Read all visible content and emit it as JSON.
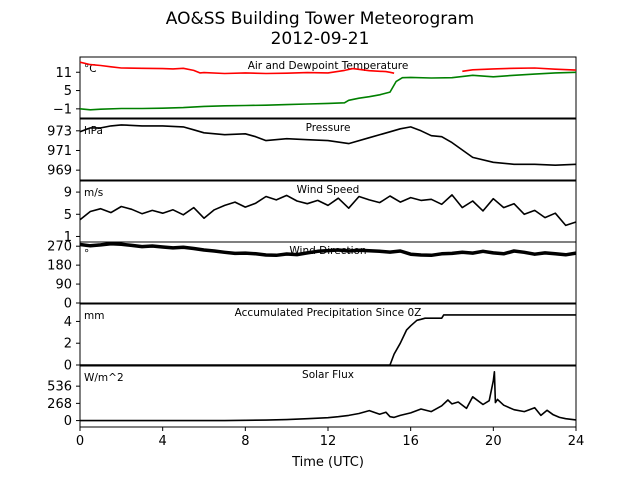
{
  "figure": {
    "title": "AO&SS Building Tower Meteorogram",
    "subtitle": "2012-09-21",
    "xlabel": "Time (UTC)",
    "x_ticks": [
      "0",
      "4",
      "8",
      "12",
      "16",
      "20",
      "24"
    ]
  },
  "chart_data": [
    {
      "type": "line",
      "title": "Air and Dewpoint Temperature",
      "unit": "°C",
      "ylim": [
        -4,
        16
      ],
      "y_ticks": [
        -1,
        5,
        11
      ],
      "series": [
        {
          "color": "#ff0000",
          "x": [
            0,
            0.5,
            1,
            1.5,
            2,
            3,
            4,
            4.5,
            5,
            5.5,
            5.8,
            6,
            7,
            8,
            9,
            10,
            11,
            12,
            12.8,
            13.2,
            14,
            14.8,
            15,
            15.2
          ],
          "y": [
            14.3,
            13.5,
            13.2,
            12.8,
            12.4,
            12.3,
            12.2,
            12.1,
            12.3,
            11.6,
            10.8,
            10.9,
            10.6,
            10.8,
            10.6,
            10.7,
            10.9,
            10.8,
            11.6,
            12.2,
            11.5,
            11.2,
            11.0,
            10.7
          ]
        },
        {
          "color": "#008000",
          "x": [
            0,
            0.5,
            1,
            2,
            3,
            4,
            5,
            6,
            7,
            8,
            9,
            10,
            11,
            12,
            12.8,
            13,
            13.5,
            14,
            14.5,
            15,
            15.3,
            15.6,
            16,
            17,
            18,
            19,
            20,
            21,
            22,
            23,
            24
          ],
          "y": [
            -1.0,
            -1.3,
            -1.1,
            -0.9,
            -0.9,
            -0.8,
            -0.6,
            -0.2,
            0.0,
            0.1,
            0.2,
            0.4,
            0.6,
            0.8,
            1.0,
            1.8,
            2.5,
            3.0,
            3.6,
            4.5,
            8.0,
            9.2,
            9.3,
            9.1,
            9.2,
            10.0,
            9.5,
            10.0,
            10.4,
            10.8,
            11.0
          ]
        },
        {
          "color": "#ff0000",
          "x": [
            18.5,
            19,
            20,
            21,
            22,
            23,
            24
          ],
          "y": [
            11.3,
            11.8,
            12.1,
            12.3,
            12.4,
            12.0,
            11.7
          ]
        }
      ]
    },
    {
      "type": "line",
      "title": "Pressure",
      "unit": "hPa",
      "ylim": [
        968,
        974.2
      ],
      "y_ticks": [
        969,
        971,
        973
      ],
      "series": [
        {
          "color": "#000000",
          "x": [
            0,
            0.5,
            1,
            1.5,
            2,
            3,
            4,
            5,
            5.5,
            6,
            7,
            8,
            8.5,
            9,
            10,
            11,
            12,
            13,
            14,
            15,
            15.5,
            16,
            16.5,
            17,
            17.5,
            18,
            19,
            20,
            21,
            22,
            23,
            24
          ],
          "y": [
            972.9,
            973.3,
            973.3,
            973.5,
            973.6,
            973.5,
            973.5,
            973.4,
            973.1,
            972.8,
            972.6,
            972.7,
            972.4,
            972.0,
            972.2,
            972.1,
            972.0,
            971.7,
            972.3,
            972.9,
            973.2,
            973.4,
            973.0,
            972.5,
            972.4,
            971.8,
            970.3,
            969.8,
            969.6,
            969.6,
            969.5,
            969.6
          ]
        }
      ]
    },
    {
      "type": "line",
      "title": "Wind Speed",
      "unit": "m/s",
      "ylim": [
        0,
        11
      ],
      "y_ticks": [
        1,
        5,
        9
      ],
      "series": [
        {
          "color": "#000000",
          "x": [
            0,
            0.5,
            1,
            1.5,
            2,
            2.5,
            3,
            3.5,
            4,
            4.5,
            5,
            5.5,
            6,
            6.5,
            7,
            7.5,
            8,
            8.5,
            9,
            9.5,
            10,
            10.5,
            11,
            11.5,
            12,
            12.5,
            13,
            13.5,
            14,
            14.5,
            15,
            15.5,
            16,
            16.5,
            17,
            17.5,
            18,
            18.5,
            19,
            19.5,
            20,
            20.5,
            21,
            21.5,
            22,
            22.5,
            23,
            23.5,
            24
          ],
          "y": [
            4.0,
            5.5,
            6.0,
            5.3,
            6.4,
            5.9,
            5.1,
            5.7,
            5.2,
            5.8,
            4.9,
            6.2,
            4.3,
            5.8,
            6.6,
            7.2,
            6.3,
            7.0,
            8.2,
            7.6,
            8.4,
            7.4,
            6.9,
            7.5,
            6.6,
            7.9,
            6.1,
            8.2,
            7.6,
            7.1,
            8.3,
            7.2,
            8.0,
            7.5,
            7.7,
            6.8,
            8.5,
            6.2,
            7.4,
            5.6,
            7.8,
            6.2,
            6.9,
            5.0,
            5.7,
            4.4,
            5.2,
            3.0,
            3.6
          ]
        }
      ]
    },
    {
      "type": "scatter",
      "title": "Wind Direction",
      "unit": "°",
      "ylim": [
        0,
        290
      ],
      "y_ticks": [
        0,
        90,
        180,
        270
      ],
      "series": [
        {
          "color": "#000000",
          "x": [
            0,
            0.5,
            1,
            1.5,
            2,
            2.5,
            3,
            3.5,
            4,
            4.5,
            5,
            5.5,
            6,
            6.5,
            7,
            7.5,
            8,
            8.5,
            9,
            9.5,
            10,
            10.5,
            11,
            11.5,
            12,
            12.5,
            13,
            13.5,
            14,
            14.5,
            15,
            15.5,
            16,
            16.5,
            17,
            17.5,
            18,
            18.5,
            19,
            19.5,
            20,
            20.5,
            21,
            21.5,
            22,
            22.5,
            23,
            23.5,
            24
          ],
          "y": [
            278,
            272,
            276,
            282,
            279,
            274,
            268,
            271,
            266,
            262,
            265,
            259,
            252,
            247,
            241,
            236,
            237,
            234,
            228,
            227,
            233,
            230,
            238,
            246,
            249,
            252,
            247,
            251,
            248,
            246,
            242,
            247,
            232,
            228,
            227,
            234,
            236,
            241,
            237,
            246,
            238,
            234,
            247,
            241,
            232,
            238,
            234,
            229,
            237
          ]
        }
      ]
    },
    {
      "type": "line",
      "title": "Accumulated Precipitation Since 0Z",
      "unit": "mm",
      "ylim": [
        0,
        5.6
      ],
      "y_ticks": [
        0,
        2,
        4
      ],
      "series": [
        {
          "color": "#000000",
          "x": [
            0,
            15.0,
            15.2,
            15.5,
            15.8,
            16.0,
            16.3,
            16.5,
            16.7,
            17.5,
            17.6,
            24
          ],
          "y": [
            0,
            0,
            1.0,
            2.0,
            3.2,
            3.6,
            4.1,
            4.2,
            4.3,
            4.3,
            4.6,
            4.6
          ]
        }
      ]
    },
    {
      "type": "line",
      "title": "Solar Flux",
      "unit": "W/m^2",
      "ylim": [
        -100,
        850
      ],
      "y_ticks": [
        0,
        268,
        536
      ],
      "series": [
        {
          "color": "#000000",
          "x": [
            0,
            7.0,
            8,
            9,
            10,
            11,
            12,
            12.5,
            13,
            13.5,
            14,
            14.5,
            14.8,
            15.0,
            15.2,
            15.5,
            16,
            16.5,
            17,
            17.5,
            17.8,
            18.0,
            18.3,
            18.7,
            19,
            19.5,
            19.8,
            20.0,
            20.05,
            20.1,
            20.2,
            20.5,
            21,
            21.5,
            22,
            22.3,
            22.6,
            22.9,
            23.2,
            23.5,
            24
          ],
          "y": [
            0,
            0,
            5,
            8,
            15,
            30,
            45,
            60,
            80,
            110,
            155,
            100,
            130,
            60,
            50,
            80,
            120,
            180,
            140,
            230,
            320,
            260,
            290,
            190,
            370,
            250,
            310,
            620,
            760,
            280,
            330,
            240,
            170,
            140,
            200,
            80,
            160,
            90,
            50,
            30,
            10
          ]
        }
      ]
    }
  ]
}
